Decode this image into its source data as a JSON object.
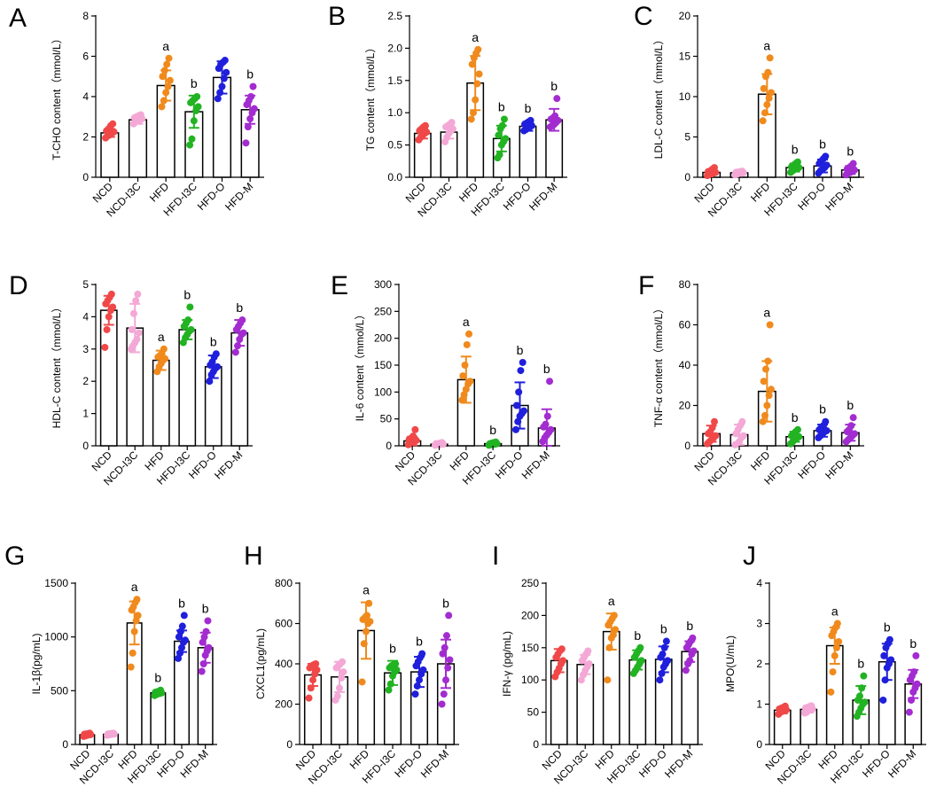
{
  "figure": {
    "colors": {
      "NCD": "#f04848",
      "NCD-I3C": "#f4a8d6",
      "HFD": "#f08a1c",
      "HFD-I3C": "#22b322",
      "HFD-O": "#1f1fdc",
      "HFD-M": "#a32cd0"
    }
  },
  "chart_data": [
    {
      "type": "bar",
      "panel": "A",
      "ylabel": "T-CHO content（mmol/L）",
      "categories": [
        "NCD",
        "NCD-I3C",
        "HFD",
        "HFD-I3C",
        "HFD-O",
        "HFD-M"
      ],
      "yticks": [
        "0",
        "2",
        "4",
        "6",
        "8"
      ],
      "ylim": [
        0,
        8
      ],
      "values": [
        2.2,
        2.85,
        4.55,
        3.25,
        4.95,
        3.35
      ],
      "errors": [
        0.2,
        0.2,
        0.75,
        0.8,
        0.8,
        0.7
      ],
      "significance": [
        "",
        "",
        "a",
        "b",
        "",
        "b"
      ],
      "points": [
        [
          1.95,
          2.05,
          2.1,
          2.2,
          2.25,
          2.3,
          2.4,
          2.55,
          2.65
        ],
        [
          2.65,
          2.75,
          2.8,
          2.85,
          2.9,
          2.95,
          3.0,
          3.05,
          3.1
        ],
        [
          3.5,
          3.8,
          4.2,
          4.5,
          4.8,
          5.0,
          5.3,
          5.6,
          5.9
        ],
        [
          1.6,
          1.9,
          2.8,
          3.3,
          3.5,
          3.7,
          3.8,
          3.9,
          4.0
        ],
        [
          3.9,
          4.2,
          4.5,
          4.9,
          5.2,
          5.4,
          5.6,
          5.7,
          5.8
        ],
        [
          1.7,
          2.5,
          2.9,
          3.2,
          3.4,
          3.6,
          3.8,
          4.0,
          4.5
        ]
      ]
    },
    {
      "type": "bar",
      "panel": "B",
      "ylabel": "TG content（mmol/L）",
      "categories": [
        "NCD",
        "NCD-I3C",
        "HFD",
        "HFD-I3C",
        "HFD-O",
        "HFD-M"
      ],
      "yticks": [
        "0.0",
        "0.5",
        "1.0",
        "1.5",
        "2.0",
        "2.5"
      ],
      "ylim": [
        0,
        2.5
      ],
      "values": [
        0.68,
        0.7,
        1.46,
        0.6,
        0.79,
        0.89
      ],
      "errors": [
        0.08,
        0.1,
        0.42,
        0.2,
        0.07,
        0.17
      ],
      "significance": [
        "",
        "",
        "a",
        "b",
        "b",
        "b"
      ],
      "points": [
        [
          0.58,
          0.62,
          0.65,
          0.68,
          0.7,
          0.72,
          0.75,
          0.78,
          0.8
        ],
        [
          0.55,
          0.62,
          0.68,
          0.72,
          0.75,
          0.78,
          0.8,
          0.82,
          0.85
        ],
        [
          0.9,
          1.0,
          1.2,
          1.45,
          1.6,
          1.75,
          1.85,
          1.92,
          1.98
        ],
        [
          0.3,
          0.35,
          0.5,
          0.55,
          0.6,
          0.65,
          0.75,
          0.8,
          0.9
        ],
        [
          0.72,
          0.74,
          0.76,
          0.78,
          0.8,
          0.82,
          0.84,
          0.86,
          0.88
        ],
        [
          0.78,
          0.8,
          0.82,
          0.85,
          0.88,
          0.9,
          0.92,
          0.95,
          1.22
        ]
      ]
    },
    {
      "type": "bar",
      "panel": "C",
      "ylabel": "LDL-C content（mmol/L）",
      "categories": [
        "NCD",
        "NCD-I3C",
        "HFD",
        "HFD-I3C",
        "HFD-O",
        "HFD-M"
      ],
      "yticks": [
        "0",
        "5",
        "10",
        "15",
        "20"
      ],
      "ylim": [
        0,
        20
      ],
      "values": [
        0.6,
        0.55,
        10.3,
        1.2,
        1.4,
        0.9
      ],
      "errors": [
        0.3,
        0.2,
        2.5,
        0.5,
        0.8,
        0.5
      ],
      "significance": [
        "",
        "",
        "a",
        "b",
        "b",
        "b"
      ],
      "points": [
        [
          0.2,
          0.3,
          0.4,
          0.5,
          0.6,
          0.7,
          0.8,
          1.0,
          1.2
        ],
        [
          0.3,
          0.4,
          0.5,
          0.5,
          0.55,
          0.6,
          0.65,
          0.7,
          0.75
        ],
        [
          7.0,
          8.0,
          9.0,
          9.8,
          10.5,
          11.0,
          12.5,
          13.0,
          14.8
        ],
        [
          0.6,
          0.8,
          1.0,
          1.1,
          1.2,
          1.3,
          1.5,
          1.7,
          1.9
        ],
        [
          0.5,
          0.8,
          1.0,
          1.2,
          1.5,
          1.7,
          2.0,
          2.3,
          2.6
        ],
        [
          0.3,
          0.5,
          0.6,
          0.8,
          0.9,
          1.0,
          1.2,
          1.4,
          1.7
        ]
      ]
    },
    {
      "type": "bar",
      "panel": "D",
      "ylabel": "HDL-C content（mmol/L）",
      "categories": [
        "NCD",
        "NCD-I3C",
        "HFD",
        "HFD-I3C",
        "HFD-O",
        "HFD-M"
      ],
      "yticks": [
        "0",
        "1",
        "2",
        "3",
        "4",
        "5"
      ],
      "ylim": [
        0,
        5
      ],
      "values": [
        4.2,
        3.65,
        2.65,
        3.6,
        2.45,
        3.5
      ],
      "errors": [
        0.45,
        0.75,
        0.3,
        0.3,
        0.35,
        0.4
      ],
      "significance": [
        "",
        "",
        "a",
        "b",
        "b",
        "b"
      ],
      "points": [
        [
          3.05,
          3.6,
          4.0,
          4.2,
          4.3,
          4.4,
          4.5,
          4.6,
          4.7
        ],
        [
          3.0,
          3.1,
          3.2,
          3.3,
          3.5,
          3.6,
          4.1,
          4.5,
          4.7
        ],
        [
          2.3,
          2.45,
          2.55,
          2.65,
          2.7,
          2.75,
          2.8,
          2.85,
          3.0
        ],
        [
          3.2,
          3.35,
          3.45,
          3.55,
          3.6,
          3.7,
          3.8,
          3.9,
          4.3
        ],
        [
          2.0,
          2.2,
          2.3,
          2.4,
          2.45,
          2.5,
          2.6,
          2.75,
          2.85
        ],
        [
          2.9,
          3.1,
          3.3,
          3.45,
          3.5,
          3.6,
          3.7,
          3.8,
          3.9
        ]
      ]
    },
    {
      "type": "bar",
      "panel": "E",
      "ylabel": "IL-6 content（mmol/L）",
      "categories": [
        "NCD",
        "NCD-I3C",
        "HFD",
        "HFD-I3C",
        "HFD-O",
        "HFD-M"
      ],
      "yticks": [
        "0",
        "50",
        "100",
        "150",
        "200",
        "250",
        "300"
      ],
      "ylim": [
        0,
        300
      ],
      "values": [
        9,
        3,
        123,
        4,
        75,
        33
      ],
      "errors": [
        8,
        2,
        43,
        2,
        43,
        35
      ],
      "significance": [
        "",
        "",
        "a",
        "b",
        "b",
        "b"
      ],
      "points": [
        [
          2,
          4,
          6,
          8,
          10,
          12,
          14,
          18,
          30
        ],
        [
          1,
          2,
          2,
          3,
          3,
          4,
          4,
          5,
          6
        ],
        [
          85,
          95,
          105,
          115,
          120,
          130,
          150,
          188,
          208
        ],
        [
          1,
          2,
          3,
          3,
          4,
          4,
          5,
          6,
          7
        ],
        [
          30,
          45,
          55,
          60,
          65,
          75,
          100,
          140,
          155
        ],
        [
          8,
          15,
          20,
          25,
          30,
          35,
          40,
          55,
          120
        ]
      ]
    },
    {
      "type": "bar",
      "panel": "F",
      "ylabel": "TNF-α content（mmol/L）",
      "categories": [
        "NCD",
        "NCD-I3C",
        "HFD",
        "HFD-I3C",
        "HFD-O",
        "HFD-M"
      ],
      "yticks": [
        "0",
        "20",
        "40",
        "60",
        "80"
      ],
      "ylim": [
        0,
        80
      ],
      "values": [
        6,
        5.5,
        27,
        4.5,
        7.5,
        6.5
      ],
      "errors": [
        4,
        5,
        15,
        2.5,
        3,
        4
      ],
      "significance": [
        "",
        "",
        "a",
        "b",
        "b",
        "b"
      ],
      "points": [
        [
          1,
          2,
          3,
          4,
          5,
          6,
          7,
          9,
          12
        ],
        [
          0.5,
          1,
          2,
          4,
          5,
          6,
          8,
          10,
          12
        ],
        [
          12,
          15,
          20,
          25,
          28,
          32,
          38,
          42,
          60
        ],
        [
          1,
          2,
          3,
          4,
          4.5,
          5,
          6,
          7,
          8
        ],
        [
          4,
          5,
          6,
          7,
          7.5,
          8,
          9,
          10,
          12
        ],
        [
          2,
          3,
          4,
          5,
          6,
          7,
          8,
          10,
          14
        ]
      ]
    },
    {
      "type": "bar",
      "panel": "G",
      "ylabel": "IL-1β(pg/mL)",
      "categories": [
        "NCD",
        "NCD-I3C",
        "HFD",
        "HFD-I3C",
        "HFD-O",
        "HFD-M"
      ],
      "yticks": [
        "0",
        "500",
        "1000",
        "1500"
      ],
      "ylim": [
        0,
        1500
      ],
      "values": [
        90,
        95,
        1130,
        480,
        960,
        900
      ],
      "errors": [
        15,
        10,
        200,
        15,
        100,
        140
      ],
      "significance": [
        "",
        "",
        "a",
        "b",
        "b",
        "b"
      ],
      "points": [
        [
          75,
          80,
          85,
          90,
          92,
          95,
          98,
          100,
          105
        ],
        [
          85,
          90,
          92,
          95,
          97,
          98,
          100,
          102,
          105
        ],
        [
          720,
          850,
          1050,
          1150,
          1200,
          1250,
          1280,
          1320,
          1350
        ],
        [
          455,
          465,
          470,
          475,
          480,
          485,
          490,
          495,
          505
        ],
        [
          800,
          850,
          900,
          950,
          970,
          1000,
          1050,
          1100,
          1200
        ],
        [
          680,
          750,
          830,
          870,
          900,
          950,
          1000,
          1050,
          1150
        ]
      ]
    },
    {
      "type": "bar",
      "panel": "H",
      "ylabel": "CXCL1(pg/mL)",
      "categories": [
        "NCD",
        "NCD-I3C",
        "HFD",
        "HFD-I3C",
        "HFD-O",
        "HFD-M"
      ],
      "yticks": [
        "0",
        "200",
        "400",
        "600",
        "800"
      ],
      "ylim": [
        0,
        800
      ],
      "values": [
        345,
        335,
        565,
        355,
        360,
        400
      ],
      "errors": [
        55,
        75,
        140,
        60,
        75,
        120
      ],
      "significance": [
        "",
        "",
        "a",
        "b",
        "b",
        "b"
      ],
      "points": [
        [
          230,
          280,
          320,
          350,
          370,
          380,
          390,
          395,
          400
        ],
        [
          220,
          240,
          280,
          330,
          360,
          380,
          390,
          400,
          410
        ],
        [
          310,
          500,
          560,
          600,
          610,
          620,
          630,
          640,
          700
        ],
        [
          270,
          300,
          340,
          360,
          370,
          380,
          390,
          395,
          400
        ],
        [
          250,
          290,
          320,
          350,
          370,
          390,
          410,
          430,
          450
        ],
        [
          200,
          250,
          320,
          380,
          420,
          450,
          480,
          540,
          640
        ]
      ]
    },
    {
      "type": "bar",
      "panel": "I",
      "ylabel": "IFN-γ (pg/mL)",
      "categories": [
        "NCD",
        "NCD-I3C",
        "HFD",
        "HFD-I3C",
        "HFD-O",
        "HFD-M"
      ],
      "yticks": [
        "0",
        "50",
        "100",
        "150",
        "200",
        "250"
      ],
      "ylim": [
        0,
        250
      ],
      "values": [
        130,
        124,
        175,
        131,
        132,
        144
      ],
      "errors": [
        18,
        15,
        28,
        15,
        20,
        16
      ],
      "significance": [
        "",
        "",
        "a",
        "b",
        "b",
        "b"
      ],
      "points": [
        [
          105,
          112,
          118,
          125,
          130,
          135,
          140,
          145,
          148
        ],
        [
          100,
          108,
          115,
          120,
          125,
          130,
          135,
          140,
          145
        ],
        [
          100,
          150,
          165,
          170,
          178,
          185,
          190,
          195,
          200
        ],
        [
          110,
          115,
          120,
          125,
          130,
          135,
          140,
          145,
          150
        ],
        [
          100,
          110,
          120,
          125,
          130,
          135,
          140,
          150,
          160
        ],
        [
          115,
          125,
          130,
          140,
          145,
          150,
          155,
          160,
          165
        ]
      ]
    },
    {
      "type": "bar",
      "panel": "J",
      "ylabel": "MPO(U/mL)",
      "categories": [
        "NCD",
        "NCD-I3C",
        "HFD",
        "HFD-I3C",
        "HFD-O",
        "HFD-M"
      ],
      "yticks": [
        "0",
        "1",
        "2",
        "3",
        "4"
      ],
      "ylim": [
        0,
        4
      ],
      "values": [
        0.85,
        0.87,
        2.45,
        1.1,
        2.05,
        1.5
      ],
      "errors": [
        0.08,
        0.08,
        0.45,
        0.35,
        0.45,
        0.35
      ],
      "significance": [
        "",
        "",
        "a",
        "b",
        "b",
        "b"
      ],
      "points": [
        [
          0.75,
          0.8,
          0.82,
          0.85,
          0.86,
          0.88,
          0.9,
          0.92,
          0.95
        ],
        [
          0.78,
          0.8,
          0.84,
          0.86,
          0.88,
          0.9,
          0.92,
          0.94,
          0.96
        ],
        [
          1.3,
          1.8,
          2.2,
          2.4,
          2.55,
          2.7,
          2.8,
          2.9,
          3.0
        ],
        [
          0.7,
          0.8,
          0.9,
          1.0,
          1.05,
          1.1,
          1.2,
          1.4,
          1.7
        ],
        [
          1.1,
          1.6,
          1.9,
          2.0,
          2.1,
          2.2,
          2.4,
          2.5,
          2.6
        ],
        [
          0.8,
          1.1,
          1.3,
          1.4,
          1.5,
          1.6,
          1.7,
          1.8,
          2.2
        ]
      ]
    }
  ]
}
